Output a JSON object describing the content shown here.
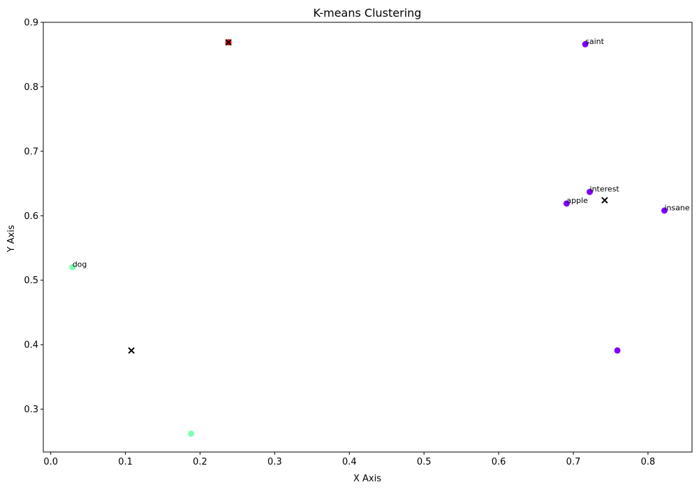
{
  "chart_data": {
    "type": "scatter",
    "title": "K-means Clustering",
    "xlabel": "X Axis",
    "ylabel": "Y Axis",
    "xlim": [
      -0.01,
      0.859
    ],
    "ylim": [
      0.2335,
      0.9
    ],
    "xticks": [
      0.0,
      0.1,
      0.2,
      0.3,
      0.4,
      0.5,
      0.6,
      0.7,
      0.8
    ],
    "xtick_labels": [
      "0.0",
      "0.1",
      "0.2",
      "0.3",
      "0.4",
      "0.5",
      "0.6",
      "0.7",
      "0.8"
    ],
    "yticks": [
      0.3,
      0.4,
      0.5,
      0.6,
      0.7,
      0.8,
      0.9
    ],
    "ytick_labels": [
      "0.3",
      "0.4",
      "0.5",
      "0.6",
      "0.7",
      "0.8",
      "0.9"
    ],
    "grid": false,
    "points": [
      {
        "x": 0.716,
        "y": 0.866,
        "label": "saint",
        "color": "#8000ff"
      },
      {
        "x": 0.722,
        "y": 0.637,
        "label": "interest",
        "color": "#8000ff"
      },
      {
        "x": 0.691,
        "y": 0.619,
        "label": "apple",
        "color": "#8000ff"
      },
      {
        "x": 0.822,
        "y": 0.608,
        "label": "insane",
        "color": "#8000ff"
      },
      {
        "x": 0.759,
        "y": 0.391,
        "label": "",
        "color": "#8000ff"
      },
      {
        "x": 0.029,
        "y": 0.52,
        "label": "dog",
        "color": "#80ffb4"
      },
      {
        "x": 0.188,
        "y": 0.262,
        "label": "",
        "color": "#80ffb4"
      },
      {
        "x": 0.238,
        "y": 0.869,
        "label": "",
        "color": "#ff0000"
      }
    ],
    "centroids": [
      {
        "x": 0.742,
        "y": 0.624
      },
      {
        "x": 0.108,
        "y": 0.391
      },
      {
        "x": 0.238,
        "y": 0.869
      }
    ],
    "centroid_color": "#000000"
  }
}
